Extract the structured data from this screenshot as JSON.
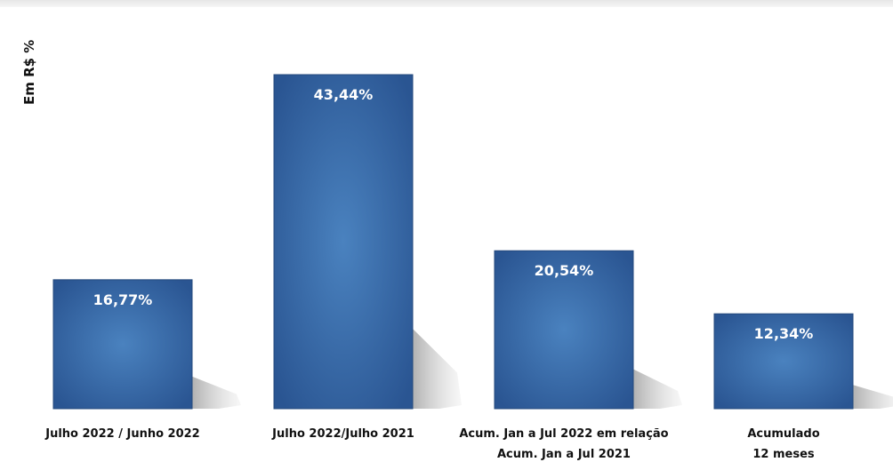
{
  "chart_data": {
    "type": "bar",
    "ylabel": "Em R$ %",
    "categories": [
      [
        "Julho 2022 / Junho 2022"
      ],
      [
        "Julho 2022/Julho 2021"
      ],
      [
        "Acum. Jan a Jul 2022 em relação",
        "Acum. Jan a Jul 2021"
      ],
      [
        "Acumulado",
        "12 meses"
      ]
    ],
    "values": [
      16.77,
      43.44,
      20.54,
      12.34
    ],
    "value_labels": [
      "16,77%",
      "43,44%",
      "20,54%",
      "12,34%"
    ],
    "ylim": [
      0,
      45
    ],
    "grid": false,
    "legend": "none",
    "bar_color": "#2e5c9a",
    "bar_highlight": "#4a82bf",
    "shadow_color": "#b8b8b8"
  }
}
